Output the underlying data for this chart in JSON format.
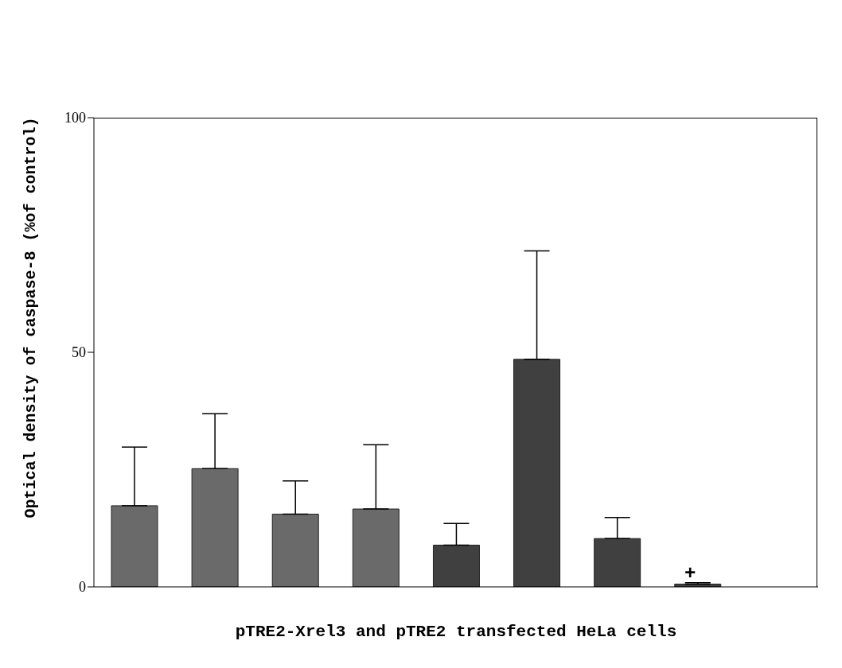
{
  "chart_data": {
    "type": "bar",
    "xlabel": "pTRE2-Xrel3 and pTRE2 transfected HeLa cells",
    "ylabel": "Optical density of caspase-8 (%of control)",
    "categories": [
      null,
      null,
      null,
      null,
      null,
      null,
      null,
      null,
      null
    ],
    "values": [
      17.3,
      25.2,
      15.5,
      16.6,
      8.9,
      48.5,
      10.3,
      0.6,
      null
    ],
    "errors": [
      [
        17.3,
        29.8
      ],
      [
        25.2,
        36.9
      ],
      [
        15.5,
        22.6
      ],
      [
        16.6,
        30.3
      ],
      [
        8.9,
        13.5
      ],
      [
        48.5,
        71.6
      ],
      [
        10.3,
        14.8
      ],
      [
        0.6,
        0.9
      ],
      null
    ],
    "colors": [
      "#6a6a6a",
      "#6a6a6a",
      "#6a6a6a",
      "#6a6a6a",
      "#404040",
      "#404040",
      "#404040",
      "#404040",
      "#404040"
    ],
    "ylim": [
      0,
      100
    ],
    "yticks": [
      0,
      50,
      100
    ],
    "grid": false,
    "annotations": [
      "+"
    ]
  }
}
